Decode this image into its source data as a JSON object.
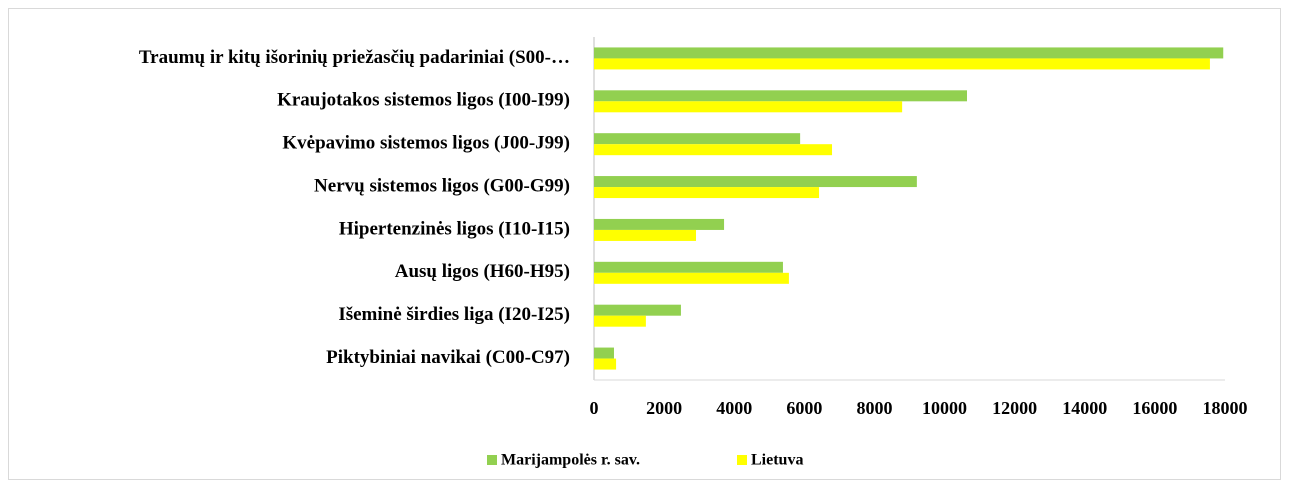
{
  "chart_data": {
    "type": "bar",
    "orientation": "horizontal",
    "categories": [
      "Traumų ir kitų išorinių priežasčių padariniai (S00-…",
      "Kraujotakos sistemos ligos (I00-I99)",
      "Kvėpavimo sistemos ligos (J00-J99)",
      "Nervų sistemos ligos (G00-G99)",
      "Hipertenzinės ligos (I10-I15)",
      "Ausų ligos (H60-H95)",
      "Išeminė širdies liga (I20-I25)",
      "Piktybiniai navikai (C00-C97)"
    ],
    "series": [
      {
        "name": "Marijampolės r. sav.",
        "color": "#92d050",
        "values": [
          17950,
          10640,
          5880,
          9210,
          3710,
          5390,
          2480,
          570
        ]
      },
      {
        "name": "Lietuva",
        "color": "#ffff00",
        "values": [
          17570,
          8790,
          6790,
          6420,
          2910,
          5560,
          1480,
          630
        ]
      }
    ],
    "xlim": [
      0,
      18000
    ],
    "xticks": [
      0,
      2000,
      4000,
      6000,
      8000,
      10000,
      12000,
      14000,
      16000,
      18000
    ],
    "grid": false,
    "legend": "bottom"
  }
}
